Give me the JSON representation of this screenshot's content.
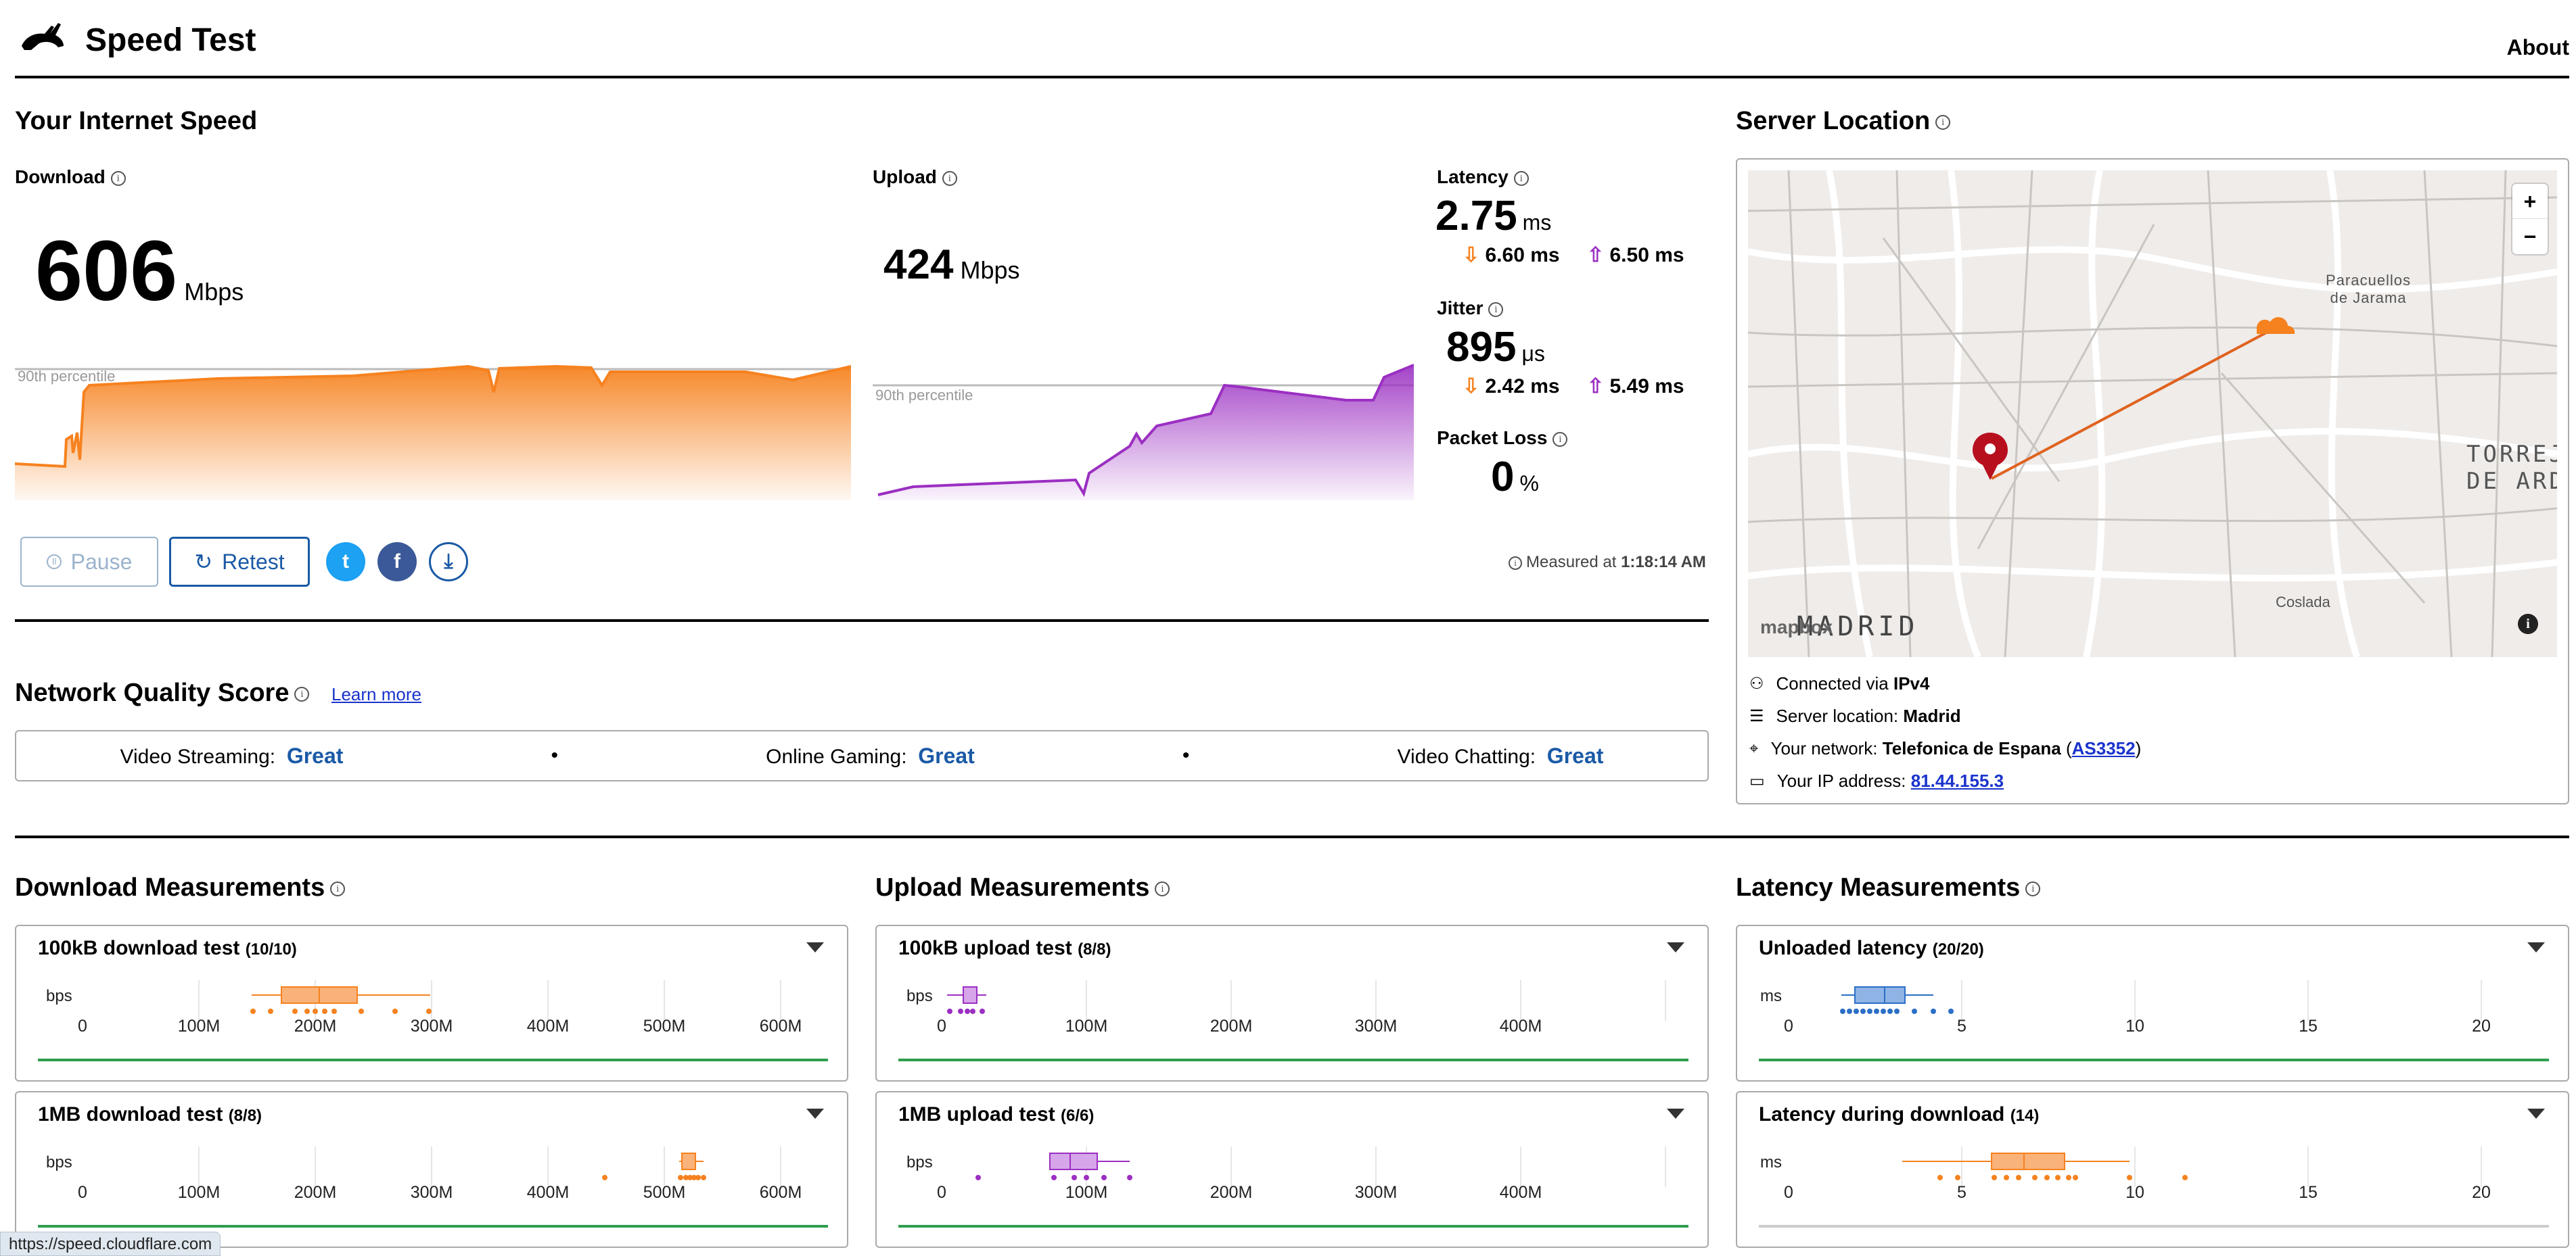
{
  "header": {
    "title": "Speed Test",
    "about": "About"
  },
  "speed": {
    "heading": "Your Internet Speed",
    "download_label": "Download",
    "download_value": "606",
    "download_unit": "Mbps",
    "upload_label": "Upload",
    "upload_value": "424",
    "upload_unit": "Mbps",
    "percentile_label": "90th percentile",
    "latency_label": "Latency",
    "latency_value": "2.75",
    "latency_unit": "ms",
    "latency_down": "6.60 ms",
    "latency_up": "6.50 ms",
    "jitter_label": "Jitter",
    "jitter_value": "895",
    "jitter_unit": "μs",
    "jitter_down": "2.42 ms",
    "jitter_up": "5.49 ms",
    "loss_label": "Packet Loss",
    "loss_value": "0",
    "loss_unit": "%",
    "measured_prefix": "Measured at",
    "measured_time": "1:18:14 AM"
  },
  "controls": {
    "pause": "Pause",
    "retest": "Retest",
    "twitter": "t",
    "facebook": "f"
  },
  "nqs": {
    "heading": "Network Quality Score",
    "learn_more": "Learn more",
    "items": [
      {
        "label": "Video Streaming:",
        "value": "Great"
      },
      {
        "label": "Online Gaming:",
        "value": "Great"
      },
      {
        "label": "Video Chatting:",
        "value": "Great"
      }
    ],
    "sep": "•"
  },
  "server": {
    "heading": "Server Location",
    "map": {
      "city": "MADRID",
      "paracuellos": "Paracuellos\nde Jarama",
      "torrejon": "TORREJ\nDE ARD",
      "coslada": "Coslada",
      "brand": "mapbox",
      "zoom_in": "+",
      "zoom_out": "−"
    },
    "connected_prefix": "Connected via",
    "connected_value": "IPv4",
    "location_prefix": "Server location:",
    "location_value": "Madrid",
    "network_prefix": "Your network:",
    "network_value": "Telefonica de Espana",
    "asn": "AS3352",
    "ip_prefix": "Your IP address:",
    "ip_value": "81.44.155.3"
  },
  "measurements": {
    "download_heading": "Download Measurements",
    "upload_heading": "Upload Measurements",
    "latency_heading": "Latency Measurements",
    "download_cards": [
      {
        "title": "100kB download test",
        "count": "(10/10)",
        "unit": "bps"
      },
      {
        "title": "1MB download test",
        "count": "(8/8)",
        "unit": "bps"
      }
    ],
    "upload_cards": [
      {
        "title": "100kB upload test",
        "count": "(8/8)",
        "unit": "bps"
      },
      {
        "title": "1MB upload test",
        "count": "(6/6)",
        "unit": "bps"
      }
    ],
    "latency_cards": [
      {
        "title": "Unloaded latency",
        "count": "(20/20)",
        "unit": "ms"
      },
      {
        "title": "Latency during download",
        "count": "(14)",
        "unit": "ms"
      }
    ],
    "dl_ticks": [
      "0",
      "100M",
      "200M",
      "300M",
      "400M",
      "500M",
      "600M"
    ],
    "ul_ticks": [
      "0",
      "100M",
      "200M",
      "300M",
      "400M"
    ],
    "lat_ticks": [
      "0",
      "5",
      "10",
      "15",
      "20"
    ]
  },
  "status_url": "https://speed.cloudflare.com",
  "colors": {
    "download": "#f6821f",
    "upload": "#9b2fc2",
    "latency": "#2b6fc6",
    "good": "#2e9e4e",
    "link": "#1a5aa6"
  }
}
